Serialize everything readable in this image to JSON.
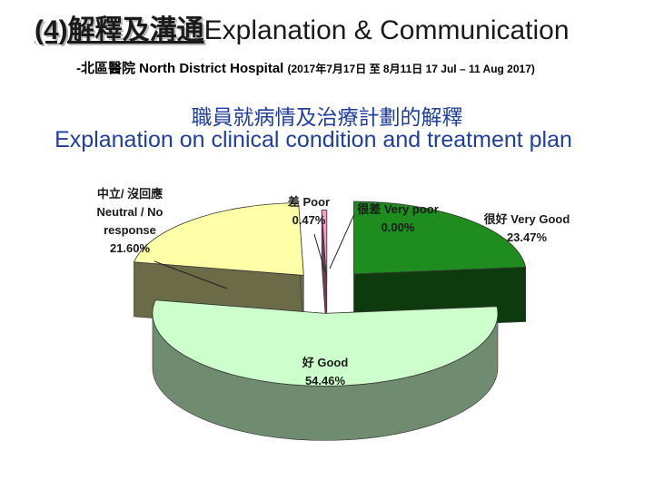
{
  "title": {
    "prefix_cn": "(4)解釋及溝通",
    "suffix_en": "Explanation & Communication"
  },
  "subtitle": {
    "hospital": "-北區醫院  North District Hospital",
    "period": "(2017年7月17日 至 8月11日 17 Jul – 11 Aug 2017)"
  },
  "heading": {
    "cn": "職員就病情及治療計劃的解釋",
    "en": "Explanation on clinical condition and treatment plan"
  },
  "chart_data": {
    "type": "pie",
    "title": "",
    "slices": [
      {
        "label_lines": [
          "很好  Very Good"
        ],
        "value": 23.47,
        "value_label": "23.47%",
        "color": "#1e8c1e"
      },
      {
        "label_lines": [
          "好  Good"
        ],
        "value": 54.46,
        "value_label": "54.46%",
        "color": "#ccffcc"
      },
      {
        "label_lines": [
          "中立/ 沒回應",
          "Neutral / No",
          "response"
        ],
        "value": 21.6,
        "value_label": "21.60%",
        "color": "#ffffa8"
      },
      {
        "label_lines": [
          "差  Poor"
        ],
        "value": 0.47,
        "value_label": "0.47%",
        "color": "#ff99cc"
      },
      {
        "label_lines": [
          "很差  Very poor"
        ],
        "value": 0.0,
        "value_label": "0.00%",
        "color": "#6e6e6e"
      }
    ]
  }
}
